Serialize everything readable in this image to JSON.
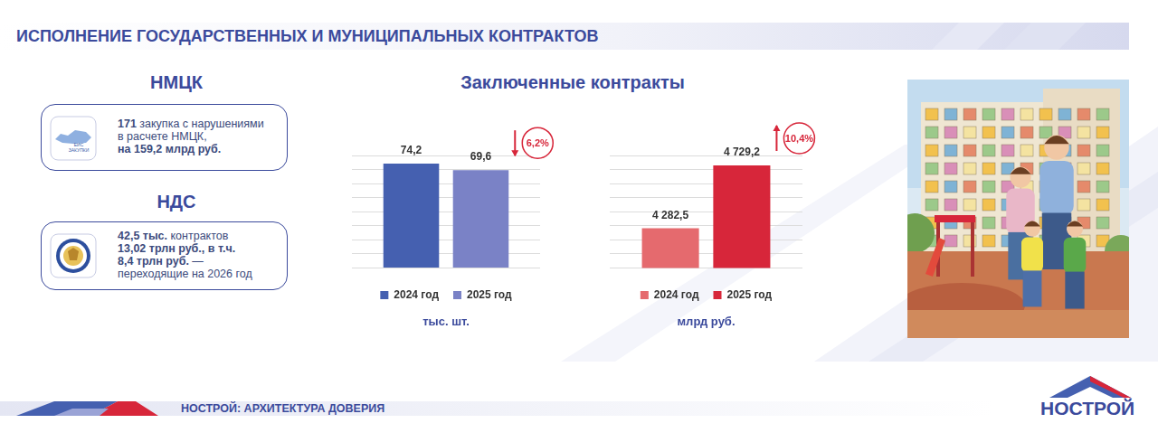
{
  "header": {
    "title": "ИСПОЛНЕНИЕ ГОСУДАРСТВЕННЫХ И МУНИЦИПАЛЬНЫХ КОНТРАКТОВ"
  },
  "panels": [
    {
      "heading": "НМЦК",
      "icon_text": [
        "ЕИС",
        "ЗАКУПКИ"
      ],
      "lines": [
        [
          {
            "text": "171",
            "bold": true
          },
          {
            "text": " закупка с нарушениями",
            "bold": false
          }
        ],
        [
          {
            "text": "в расчете НМЦК,",
            "bold": false
          }
        ],
        [
          {
            "text": "на 159,2 млрд руб.",
            "bold": true
          }
        ]
      ]
    },
    {
      "heading": "НДС",
      "lines": [
        [
          {
            "text": "42,5 тыс.",
            "bold": true
          },
          {
            "text": " контрактов",
            "bold": false
          }
        ],
        [
          {
            "text": "13,02 трлн руб., в т.ч.",
            "bold": true
          }
        ],
        [
          {
            "text": "8,4 трлн руб.",
            "bold": true
          },
          {
            "text": " —",
            "bold": false
          }
        ],
        [
          {
            "text": "переходящие на 2026 год",
            "bold": false
          }
        ]
      ]
    }
  ],
  "section_title": "Заключенные контракты",
  "chart_data": [
    {
      "type": "bar",
      "categories": [
        null
      ],
      "series": [
        {
          "name": "2024 год",
          "color": "#4560b0",
          "values": [
            74.2
          ],
          "value_labels": [
            "74,2"
          ]
        },
        {
          "name": "2025 год",
          "color": "#7a82c6",
          "values": [
            69.6
          ],
          "value_labels": [
            "69,6"
          ]
        }
      ],
      "x_label": "тыс. шт.",
      "annotation": "6,2%",
      "ylim": [
        0,
        80
      ],
      "yticks": [
        0,
        10,
        20,
        30,
        40,
        50,
        60,
        70,
        80
      ],
      "grid": true,
      "tick_labels": false,
      "legend": "bottom",
      "data_labels": true
    },
    {
      "type": "bar",
      "categories": [
        null
      ],
      "series": [
        {
          "name": "2024 год",
          "color": "#e56a6e",
          "values": [
            4282.5
          ],
          "value_labels": [
            "4 282,5"
          ]
        },
        {
          "name": "2025 год",
          "color": "#d7263a",
          "values": [
            4729.2
          ],
          "value_labels": [
            "4 729,2"
          ]
        }
      ],
      "x_label": "млрд руб.",
      "annotation": "10,4%",
      "ylim": [
        4000,
        4800
      ],
      "yticks": [
        4000,
        4100,
        4200,
        4300,
        4400,
        4500,
        4600,
        4700,
        4800
      ],
      "grid": true,
      "tick_labels": false,
      "legend": "bottom",
      "data_labels": true
    }
  ],
  "footer": {
    "tagline": "НОСТРОЙ: АРХИТЕКТУРА ДОВЕРИЯ",
    "logo": "НОСТРОЙ"
  }
}
